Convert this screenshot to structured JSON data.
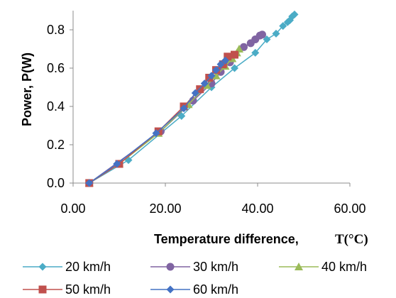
{
  "chart_data": {
    "type": "scatter",
    "title": "",
    "xlabel": "Temperature difference,",
    "xunit": "T(°C)",
    "ylabel": "Power, P(W)",
    "xlim": [
      0,
      60
    ],
    "ylim": [
      0,
      0.9
    ],
    "x_ticks": [
      "0.00",
      "20.00",
      "40.00",
      "60.00"
    ],
    "y_ticks": [
      "0.0",
      "0.2",
      "0.4",
      "0.6",
      "0.8"
    ],
    "grid": false,
    "legend_position": "bottom",
    "series": [
      {
        "name": "20 km/h",
        "color": "#4BACC6",
        "marker": "diamond",
        "points": [
          [
            3.5,
            0
          ],
          [
            12,
            0.12
          ],
          [
            23.5,
            0.35
          ],
          [
            30,
            0.5
          ],
          [
            35,
            0.6
          ],
          [
            39.5,
            0.68
          ],
          [
            42,
            0.75
          ],
          [
            44,
            0.78
          ],
          [
            45.5,
            0.82
          ],
          [
            46.5,
            0.84
          ],
          [
            47,
            0.85
          ],
          [
            47.5,
            0.87
          ],
          [
            48,
            0.88
          ]
        ]
      },
      {
        "name": "30 km/h",
        "color": "#8064A2",
        "marker": "circle",
        "points": [
          [
            3.5,
            0
          ],
          [
            19,
            0.27
          ],
          [
            26,
            0.43
          ],
          [
            30,
            0.52
          ],
          [
            32,
            0.58
          ],
          [
            34,
            0.63
          ],
          [
            37,
            0.71
          ],
          [
            38.5,
            0.73
          ],
          [
            39.5,
            0.75
          ],
          [
            40.5,
            0.77
          ],
          [
            41,
            0.775
          ]
        ]
      },
      {
        "name": "40 km/h",
        "color": "#9BBB59",
        "marker": "triangle",
        "points": [
          [
            3.5,
            0
          ],
          [
            10,
            0.1
          ],
          [
            18.5,
            0.26
          ],
          [
            25,
            0.41
          ],
          [
            29,
            0.51
          ],
          [
            31,
            0.56
          ],
          [
            33,
            0.61
          ],
          [
            34.5,
            0.65
          ],
          [
            35.5,
            0.68
          ],
          [
            36,
            0.7
          ]
        ]
      },
      {
        "name": "50 km/h",
        "color": "#C0504D",
        "marker": "square",
        "points": [
          [
            3.5,
            0
          ],
          [
            10,
            0.1
          ],
          [
            18.5,
            0.27
          ],
          [
            24,
            0.4
          ],
          [
            27.5,
            0.49
          ],
          [
            29.5,
            0.55
          ],
          [
            31,
            0.59
          ],
          [
            32.5,
            0.62
          ],
          [
            33.5,
            0.66
          ],
          [
            35,
            0.67
          ]
        ]
      },
      {
        "name": "60 km/h",
        "color": "#4472C4",
        "marker": "diamond",
        "points": [
          [
            3.5,
            0
          ],
          [
            9.5,
            0.1
          ],
          [
            18,
            0.26
          ],
          [
            24,
            0.39
          ],
          [
            26.5,
            0.47
          ],
          [
            28.5,
            0.52
          ],
          [
            30,
            0.56
          ],
          [
            31,
            0.59
          ],
          [
            32,
            0.62
          ],
          [
            33,
            0.64
          ]
        ]
      }
    ]
  }
}
